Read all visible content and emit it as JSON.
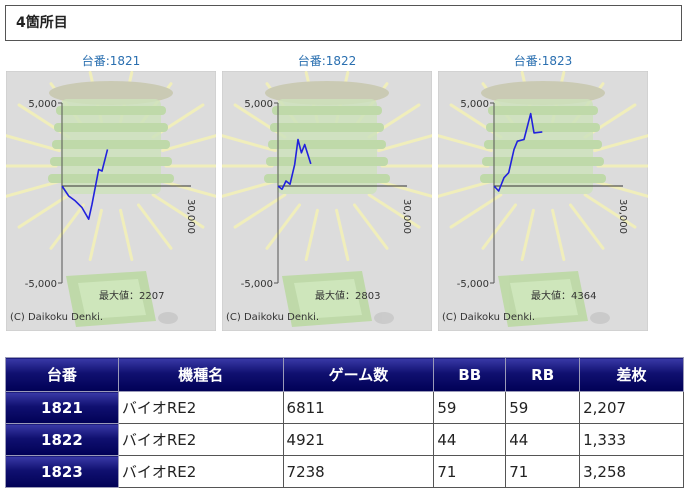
{
  "section": {
    "title": "4箇所目"
  },
  "graphs": [
    {
      "title": "台番:1821",
      "max_label": "最大値：2207",
      "copyright": "(C) Daikoku Denki.",
      "y_tick_top": "5,000",
      "y_tick_bottom": "-5,000",
      "x_tick": "30,000"
    },
    {
      "title": "台番:1822",
      "max_label": "最大値：2803",
      "copyright": "(C) Daikoku Denki.",
      "y_tick_top": "5,000",
      "y_tick_bottom": "-5,000",
      "x_tick": "30,000"
    },
    {
      "title": "台番:1823",
      "max_label": "最大値：4364",
      "copyright": "(C) Daikoku Denki.",
      "y_tick_top": "5,000",
      "y_tick_bottom": "-5,000",
      "x_tick": "30,000"
    }
  ],
  "chart_data": [
    {
      "type": "line",
      "title": "台番:1821",
      "xlim": [
        0,
        30000
      ],
      "ylim": [
        -5000,
        5000
      ],
      "x": [
        0,
        1000,
        2000,
        3000,
        4000,
        4500,
        5500,
        6000,
        6811
      ],
      "y": [
        0,
        -600,
        -900,
        -1300,
        -2000,
        -1100,
        1000,
        900,
        2207
      ]
    },
    {
      "type": "line",
      "title": "台番:1822",
      "xlim": [
        0,
        30000
      ],
      "ylim": [
        -5000,
        5000
      ],
      "x": [
        0,
        600,
        1200,
        1800,
        2500,
        3000,
        3500,
        4000,
        4921
      ],
      "y": [
        0,
        -200,
        300,
        100,
        1300,
        2800,
        2000,
        2500,
        1333
      ]
    },
    {
      "type": "line",
      "title": "台番:1823",
      "xlim": [
        0,
        30000
      ],
      "ylim": [
        -5000,
        5000
      ],
      "x": [
        0,
        700,
        1500,
        2200,
        3000,
        3500,
        4500,
        5500,
        6000,
        7238
      ],
      "y": [
        0,
        -300,
        500,
        800,
        2200,
        2700,
        2800,
        4364,
        3200,
        3258
      ]
    }
  ],
  "table": {
    "headers": [
      "台番",
      "機種名",
      "ゲーム数",
      "BB",
      "RB",
      "差枚"
    ],
    "rows": [
      {
        "num": "1821",
        "model": "バイオRE2",
        "games": "6811",
        "bb": "59",
        "rb": "59",
        "diff": "2,207"
      },
      {
        "num": "1822",
        "model": "バイオRE2",
        "games": "4921",
        "bb": "44",
        "rb": "44",
        "diff": "1,333"
      },
      {
        "num": "1823",
        "model": "バイオRE2",
        "games": "7238",
        "bb": "71",
        "rb": "71",
        "diff": "3,258"
      }
    ]
  }
}
